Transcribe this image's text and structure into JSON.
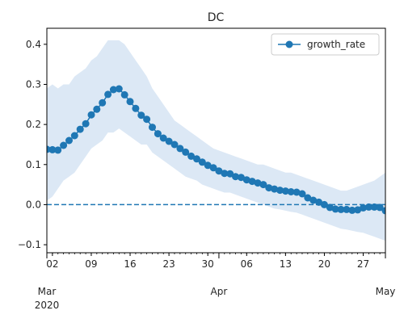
{
  "chart_data": {
    "type": "line",
    "title": "DC",
    "xlabel": "",
    "ylabel": "",
    "x_start": "2020-03-01",
    "x_end": "2020-05-01",
    "ylim": [
      -0.12,
      0.44
    ],
    "yticks": [
      -0.1,
      0.0,
      0.1,
      0.2,
      0.3,
      0.4
    ],
    "ytick_labels": [
      "−0.1",
      "0.0",
      "0.1",
      "0.2",
      "0.3",
      "0.4"
    ],
    "minor_ticks": [
      {
        "date": "2020-03-02",
        "label": "02"
      },
      {
        "date": "2020-03-09",
        "label": "09"
      },
      {
        "date": "2020-03-16",
        "label": "16"
      },
      {
        "date": "2020-03-23",
        "label": "23"
      },
      {
        "date": "2020-03-30",
        "label": "30"
      },
      {
        "date": "2020-04-06",
        "label": "06"
      },
      {
        "date": "2020-04-13",
        "label": "13"
      },
      {
        "date": "2020-04-20",
        "label": "20"
      },
      {
        "date": "2020-04-27",
        "label": "27"
      }
    ],
    "major_ticks": [
      {
        "date": "2020-03-01",
        "label": "Mar",
        "sublabel": "2020"
      },
      {
        "date": "2020-04-01",
        "label": "Apr",
        "sublabel": ""
      },
      {
        "date": "2020-05-01",
        "label": "May",
        "sublabel": ""
      }
    ],
    "legend": {
      "position": "upper right",
      "entries": [
        "growth_rate"
      ]
    },
    "reference_line": {
      "y": 0.0,
      "style": "dashed"
    },
    "colors": {
      "line": "#1f77b4",
      "band": "#dce8f5",
      "axis": "#000000"
    },
    "series": [
      {
        "name": "growth_rate",
        "x": [
          "2020-03-01",
          "2020-03-02",
          "2020-03-03",
          "2020-03-04",
          "2020-03-05",
          "2020-03-06",
          "2020-03-07",
          "2020-03-08",
          "2020-03-09",
          "2020-03-10",
          "2020-03-11",
          "2020-03-12",
          "2020-03-13",
          "2020-03-14",
          "2020-03-15",
          "2020-03-16",
          "2020-03-17",
          "2020-03-18",
          "2020-03-19",
          "2020-03-20",
          "2020-03-21",
          "2020-03-22",
          "2020-03-23",
          "2020-03-24",
          "2020-03-25",
          "2020-03-26",
          "2020-03-27",
          "2020-03-28",
          "2020-03-29",
          "2020-03-30",
          "2020-03-31",
          "2020-04-01",
          "2020-04-02",
          "2020-04-03",
          "2020-04-04",
          "2020-04-05",
          "2020-04-06",
          "2020-04-07",
          "2020-04-08",
          "2020-04-09",
          "2020-04-10",
          "2020-04-11",
          "2020-04-12",
          "2020-04-13",
          "2020-04-14",
          "2020-04-15",
          "2020-04-16",
          "2020-04-17",
          "2020-04-18",
          "2020-04-19",
          "2020-04-20",
          "2020-04-21",
          "2020-04-22",
          "2020-04-23",
          "2020-04-24",
          "2020-04-25",
          "2020-04-26",
          "2020-04-27",
          "2020-04-28",
          "2020-04-29",
          "2020-04-30",
          "2020-05-01"
        ],
        "values": [
          0.138,
          0.137,
          0.136,
          0.148,
          0.16,
          0.172,
          0.188,
          0.202,
          0.224,
          0.238,
          0.254,
          0.275,
          0.287,
          0.289,
          0.274,
          0.257,
          0.24,
          0.223,
          0.213,
          0.193,
          0.177,
          0.166,
          0.158,
          0.15,
          0.14,
          0.131,
          0.121,
          0.114,
          0.106,
          0.098,
          0.092,
          0.084,
          0.078,
          0.077,
          0.07,
          0.068,
          0.062,
          0.058,
          0.054,
          0.05,
          0.042,
          0.039,
          0.036,
          0.034,
          0.032,
          0.031,
          0.027,
          0.017,
          0.011,
          0.006,
          0.0,
          -0.007,
          -0.011,
          -0.012,
          -0.012,
          -0.014,
          -0.013,
          -0.008,
          -0.006,
          -0.006,
          -0.007,
          -0.015
        ],
        "lower": [
          0.01,
          0.02,
          0.04,
          0.06,
          0.07,
          0.08,
          0.1,
          0.12,
          0.14,
          0.15,
          0.16,
          0.18,
          0.18,
          0.19,
          0.18,
          0.17,
          0.16,
          0.15,
          0.15,
          0.13,
          0.12,
          0.11,
          0.1,
          0.09,
          0.08,
          0.07,
          0.065,
          0.06,
          0.05,
          0.045,
          0.04,
          0.035,
          0.03,
          0.03,
          0.025,
          0.02,
          0.015,
          0.01,
          0.005,
          0.0,
          -0.005,
          -0.01,
          -0.012,
          -0.015,
          -0.018,
          -0.02,
          -0.025,
          -0.03,
          -0.035,
          -0.04,
          -0.045,
          -0.05,
          -0.055,
          -0.06,
          -0.062,
          -0.065,
          -0.068,
          -0.07,
          -0.075,
          -0.08,
          -0.085,
          -0.09
        ],
        "upper": [
          0.29,
          0.3,
          0.29,
          0.3,
          0.3,
          0.32,
          0.33,
          0.34,
          0.36,
          0.37,
          0.39,
          0.41,
          0.41,
          0.41,
          0.4,
          0.38,
          0.36,
          0.34,
          0.32,
          0.29,
          0.27,
          0.25,
          0.23,
          0.21,
          0.2,
          0.19,
          0.18,
          0.17,
          0.16,
          0.15,
          0.14,
          0.135,
          0.13,
          0.125,
          0.12,
          0.115,
          0.11,
          0.105,
          0.1,
          0.1,
          0.095,
          0.09,
          0.085,
          0.08,
          0.08,
          0.075,
          0.07,
          0.065,
          0.06,
          0.055,
          0.05,
          0.045,
          0.04,
          0.035,
          0.035,
          0.04,
          0.045,
          0.05,
          0.055,
          0.06,
          0.07,
          0.08
        ]
      }
    ]
  }
}
